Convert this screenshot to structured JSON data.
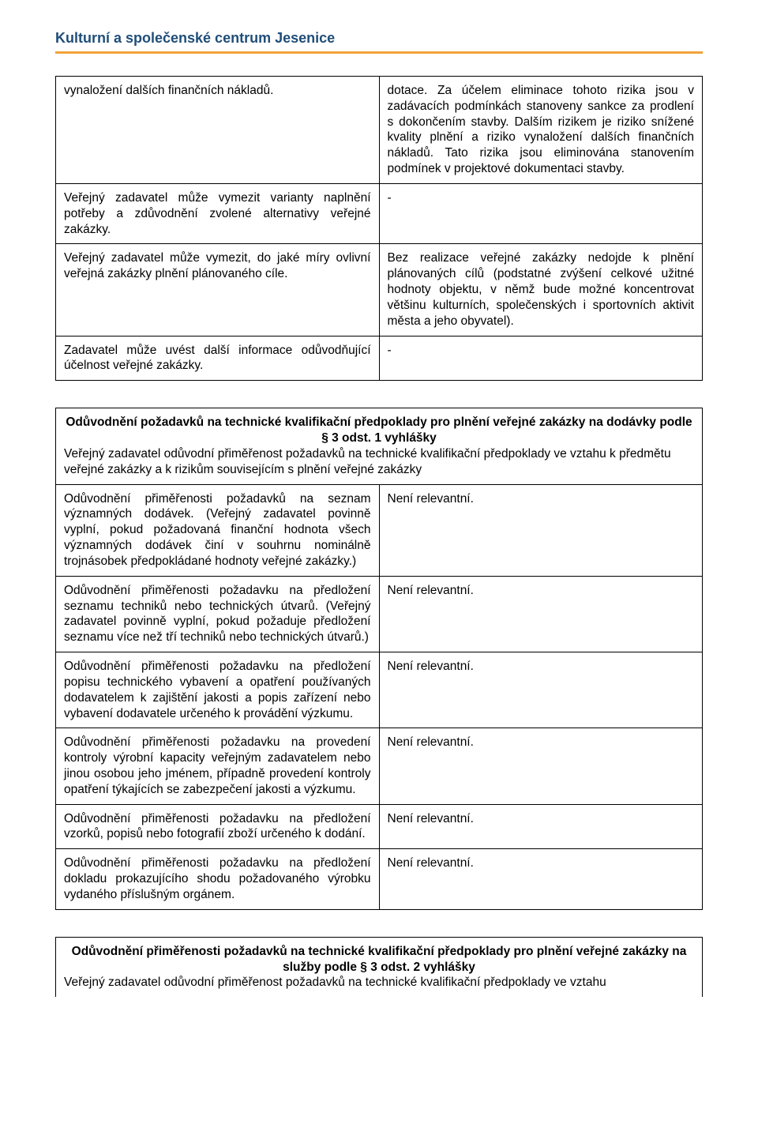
{
  "header": {
    "title": "Kulturní a společenské centrum Jesenice"
  },
  "table1": {
    "rows": [
      {
        "left": "vynaložení dalších finančních nákladů.",
        "right": "dotace. Za účelem eliminace tohoto rizika jsou v zadávacích podmínkách stanoveny sankce za prodlení s dokončením stavby. Dalším rizikem je riziko snížené kvality plnění a riziko vynaložení dalších finančních nákladů. Tato rizika jsou eliminována stanovením podmínek v projektové dokumentaci stavby."
      },
      {
        "left": "Veřejný zadavatel může vymezit varianty naplnění potřeby a zdůvodnění zvolené alternativy veřejné zakázky.",
        "right": "-"
      },
      {
        "left": "Veřejný zadavatel může vymezit, do jaké míry ovlivní veřejná zakázky plnění plánovaného cíle.",
        "right": "Bez realizace veřejné zakázky nedojde k plnění plánovaných cílů (podstatné zvýšení celkové užitné hodnoty objektu, v němž bude možné koncentrovat většinu kulturních, společenských i sportovních aktivit města a jeho obyvatel)."
      },
      {
        "left": "Zadavatel může uvést další informace odůvodňující účelnost veřejné zakázky.",
        "right": "-"
      }
    ]
  },
  "table2": {
    "heading": "Odůvodnění požadavků na technické kvalifikační předpoklady pro plnění veřejné zakázky na dodávky podle § 3 odst. 1 vyhlášky",
    "subheading": "Veřejný zadavatel odůvodní přiměřenost požadavků na technické kvalifikační předpoklady ve vztahu k předmětu veřejné zakázky a k rizikům souvisejícím s plnění veřejné zakázky",
    "rows": [
      {
        "left": "Odůvodnění přiměřenosti požadavků na seznam významných dodávek. (Veřejný zadavatel povinně vyplní, pokud požadovaná finanční hodnota všech významných dodávek činí v souhrnu nominálně trojnásobek předpokládané hodnoty veřejné zakázky.)",
        "right": "Není relevantní."
      },
      {
        "left": "Odůvodnění přiměřenosti požadavku na předložení seznamu techniků nebo technických útvarů. (Veřejný zadavatel povinně vyplní, pokud požaduje předložení seznamu více než tří techniků nebo technických útvarů.)",
        "right": "Není relevantní."
      },
      {
        "left": "Odůvodnění přiměřenosti požadavku na předložení popisu technického vybavení a opatření používaných dodavatelem k zajištění jakosti a popis zařízení nebo vybavení dodavatele určeného k provádění výzkumu.",
        "right": "Není relevantní."
      },
      {
        "left": "Odůvodnění přiměřenosti požadavku na provedení kontroly výrobní kapacity veřejným zadavatelem nebo jinou osobou jeho jménem, případně provedení kontroly opatření týkajících se zabezpečení jakosti a výzkumu.",
        "right": "Není relevantní."
      },
      {
        "left": "Odůvodnění přiměřenosti požadavku na předložení vzorků, popisů nebo fotografií zboží určeného k dodání.",
        "right": "Není relevantní."
      },
      {
        "left": "Odůvodnění přiměřenosti požadavku na předložení dokladu prokazujícího shodu požadovaného výrobku vydaného příslušným orgánem.",
        "right": "Není relevantní."
      }
    ]
  },
  "table3": {
    "heading": "Odůvodnění přiměřenosti požadavků na technické kvalifikační předpoklady pro plnění veřejné zakázky na služby podle § 3 odst. 2 vyhlášky",
    "subheading": "Veřejný zadavatel odůvodní přiměřenost požadavků na technické kvalifikační předpoklady ve vztahu"
  }
}
